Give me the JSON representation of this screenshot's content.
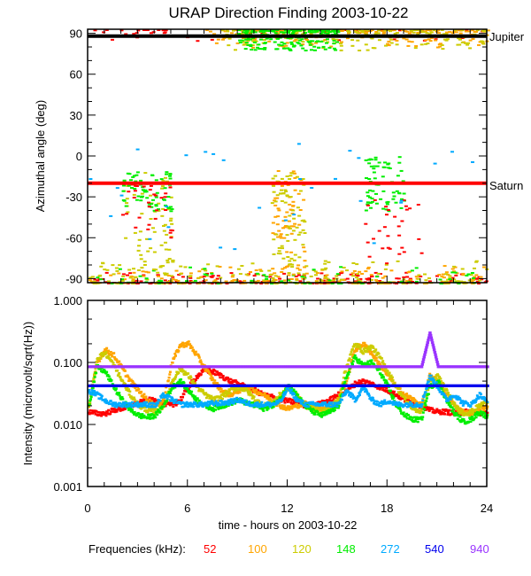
{
  "chart_data": [
    {
      "type": "scatter",
      "title": "URAP Direction Finding  2003-10-22",
      "xlabel": "",
      "ylabel": "Azimuthal angle (deg)",
      "xlim": [
        0,
        24
      ],
      "ylim": [
        -93,
        93
      ],
      "yticks": [
        90,
        60,
        30,
        0,
        -30,
        -60,
        -90
      ],
      "ytick_labels": [
        "90",
        "60",
        "30",
        "0",
        "-30",
        "-60",
        "-90"
      ],
      "grid": false,
      "reference_lines": [
        {
          "label": "Jupiter",
          "y": 88,
          "color": "#000000"
        },
        {
          "label": "Saturn",
          "y": -20,
          "color": "#ff0000"
        }
      ],
      "clusters": [
        {
          "series": "52",
          "x_range": [
            0,
            24
          ],
          "y_range": [
            -93,
            -85
          ],
          "density": "high"
        },
        {
          "series": "100",
          "x_range": [
            0,
            24
          ],
          "y_range": [
            -93,
            -80
          ],
          "density": "high"
        },
        {
          "series": "120",
          "x_range": [
            0,
            24
          ],
          "y_range": [
            -93,
            -75
          ],
          "density": "high"
        },
        {
          "series": "148",
          "x_range": [
            0,
            24
          ],
          "y_range": [
            -93,
            -80
          ],
          "density": "medium"
        },
        {
          "series": "52",
          "x_range": [
            0,
            24
          ],
          "y_range": [
            85,
            93
          ],
          "density": "medium"
        },
        {
          "series": "100",
          "x_range": [
            7,
            24
          ],
          "y_range": [
            80,
            93
          ],
          "density": "high"
        },
        {
          "series": "120",
          "x_range": [
            8,
            24
          ],
          "y_range": [
            78,
            93
          ],
          "density": "high"
        },
        {
          "series": "148",
          "x_range": [
            9,
            15
          ],
          "y_range": [
            78,
            93
          ],
          "density": "high"
        },
        {
          "series": "120",
          "x_range": [
            2,
            5
          ],
          "y_range": [
            -90,
            -10
          ],
          "density": "medium"
        },
        {
          "series": "148",
          "x_range": [
            2,
            5
          ],
          "y_range": [
            -40,
            -10
          ],
          "density": "medium"
        },
        {
          "series": "52",
          "x_range": [
            2,
            5
          ],
          "y_range": [
            -60,
            -20
          ],
          "density": "low"
        },
        {
          "series": "100",
          "x_range": [
            11,
            13
          ],
          "y_range": [
            -90,
            -10
          ],
          "density": "medium"
        },
        {
          "series": "120",
          "x_range": [
            11,
            13
          ],
          "y_range": [
            -80,
            -10
          ],
          "density": "medium"
        },
        {
          "series": "148",
          "x_range": [
            16.5,
            19
          ],
          "y_range": [
            -40,
            0
          ],
          "density": "medium"
        },
        {
          "series": "52",
          "x_range": [
            16.5,
            20
          ],
          "y_range": [
            -80,
            -30
          ],
          "density": "low"
        },
        {
          "series": "272",
          "x_range": [
            0,
            24
          ],
          "y_range": [
            -70,
            10
          ],
          "density": "low"
        }
      ]
    },
    {
      "type": "line",
      "title": "",
      "xlabel": "time - hours on 2003-10-22",
      "ylabel": "Intensity (microvolt/sqrt(Hz))",
      "xlim": [
        0,
        24
      ],
      "ylim": [
        0.001,
        1.0
      ],
      "yscale": "log",
      "xticks": [
        0,
        6,
        12,
        18,
        24
      ],
      "xtick_labels": [
        "0",
        "6",
        "12",
        "18",
        "24"
      ],
      "yticks": [
        1.0,
        0.1,
        0.01,
        0.001
      ],
      "ytick_labels": [
        "1.000",
        "0.100",
        "0.010",
        "0.001"
      ],
      "grid": false,
      "x": [
        0,
        0.5,
        1,
        1.5,
        2,
        2.5,
        3,
        3.5,
        4,
        4.5,
        5,
        5.5,
        6,
        6.5,
        7,
        7.5,
        8,
        8.5,
        9,
        9.5,
        10,
        10.5,
        11,
        11.5,
        12,
        12.5,
        13,
        13.5,
        14,
        14.5,
        15,
        15.5,
        16,
        16.5,
        17,
        17.5,
        18,
        18.5,
        19,
        19.5,
        20,
        20.5,
        21,
        21.5,
        22,
        22.5,
        23,
        23.5,
        24
      ],
      "series": [
        {
          "name": "52",
          "color": "#ff0000",
          "values": [
            0.016,
            0.015,
            0.015,
            0.017,
            0.018,
            0.02,
            0.022,
            0.025,
            0.024,
            0.022,
            0.02,
            0.025,
            0.04,
            0.06,
            0.075,
            0.07,
            0.06,
            0.05,
            0.045,
            0.04,
            0.035,
            0.03,
            0.028,
            0.025,
            0.024,
            0.022,
            0.02,
            0.02,
            0.022,
            0.025,
            0.03,
            0.035,
            0.045,
            0.05,
            0.045,
            0.04,
            0.035,
            0.03,
            0.025,
            0.022,
            0.02,
            0.017,
            0.016,
            0.016,
            0.015,
            0.016,
            0.016,
            0.015,
            0.015
          ]
        },
        {
          "name": "100",
          "color": "#ffa500",
          "values": [
            0.02,
            0.1,
            0.16,
            0.13,
            0.08,
            0.05,
            0.035,
            0.025,
            0.02,
            0.025,
            0.1,
            0.19,
            0.2,
            0.13,
            0.08,
            0.05,
            0.035,
            0.03,
            0.035,
            0.04,
            0.035,
            0.03,
            0.025,
            0.02,
            0.018,
            0.02,
            0.022,
            0.02,
            0.018,
            0.02,
            0.025,
            0.05,
            0.16,
            0.2,
            0.14,
            0.09,
            0.06,
            0.04,
            0.03,
            0.025,
            0.02,
            0.06,
            0.05,
            0.03,
            0.02,
            0.016,
            0.015,
            0.017,
            0.02
          ]
        },
        {
          "name": "120",
          "color": "#cccc00",
          "values": [
            0.018,
            0.12,
            0.14,
            0.09,
            0.05,
            0.03,
            0.02,
            0.017,
            0.016,
            0.02,
            0.05,
            0.08,
            0.06,
            0.04,
            0.03,
            0.025,
            0.028,
            0.035,
            0.04,
            0.035,
            0.025,
            0.02,
            0.022,
            0.03,
            0.04,
            0.03,
            0.02,
            0.018,
            0.016,
            0.018,
            0.025,
            0.09,
            0.2,
            0.15,
            0.18,
            0.12,
            0.07,
            0.04,
            0.025,
            0.018,
            0.016,
            0.05,
            0.06,
            0.035,
            0.02,
            0.015,
            0.016,
            0.02,
            0.025
          ]
        },
        {
          "name": "148",
          "color": "#00ee00",
          "values": [
            0.02,
            0.085,
            0.07,
            0.04,
            0.025,
            0.017,
            0.014,
            0.013,
            0.014,
            0.02,
            0.04,
            0.05,
            0.035,
            0.025,
            0.02,
            0.018,
            0.02,
            0.022,
            0.025,
            0.022,
            0.02,
            0.018,
            0.02,
            0.025,
            0.045,
            0.03,
            0.02,
            0.016,
            0.014,
            0.016,
            0.02,
            0.06,
            0.12,
            0.09,
            0.1,
            0.07,
            0.04,
            0.02,
            0.014,
            0.012,
            0.012,
            0.04,
            0.05,
            0.025,
            0.015,
            0.011,
            0.012,
            0.016,
            0.013
          ]
        },
        {
          "name": "272",
          "color": "#00aaff",
          "values": [
            0.035,
            0.03,
            0.024,
            0.021,
            0.021,
            0.021,
            0.021,
            0.021,
            0.02,
            0.03,
            0.025,
            0.021,
            0.021,
            0.021,
            0.021,
            0.022,
            0.022,
            0.023,
            0.025,
            0.022,
            0.021,
            0.021,
            0.021,
            0.023,
            0.04,
            0.025,
            0.021,
            0.021,
            0.021,
            0.021,
            0.021,
            0.035,
            0.025,
            0.04,
            0.025,
            0.021,
            0.024,
            0.021,
            0.021,
            0.021,
            0.021,
            0.06,
            0.04,
            0.025,
            0.03,
            0.022,
            0.021,
            0.03,
            0.022
          ]
        },
        {
          "name": "540",
          "color": "#0000ee",
          "values": [
            0.042,
            0.042,
            0.042,
            0.042,
            0.042,
            0.042,
            0.042,
            0.042,
            0.042,
            0.042,
            0.042,
            0.042,
            0.042,
            0.042,
            0.042,
            0.042,
            0.042,
            0.042,
            0.042,
            0.042,
            0.042,
            0.042,
            0.042,
            0.042,
            0.042,
            0.042,
            0.042,
            0.042,
            0.042,
            0.042,
            0.042,
            0.042,
            0.042,
            0.042,
            0.042,
            0.042,
            0.042,
            0.042,
            0.042,
            0.042,
            0.042,
            0.042,
            0.042,
            0.042,
            0.042,
            0.042,
            0.042,
            0.042,
            0.042
          ]
        },
        {
          "name": "940",
          "color": "#9933ff",
          "values": [
            0.085,
            0.085,
            0.085,
            0.085,
            0.085,
            0.085,
            0.085,
            0.085,
            0.085,
            0.085,
            0.085,
            0.085,
            0.085,
            0.085,
            0.085,
            0.085,
            0.085,
            0.085,
            0.085,
            0.085,
            0.085,
            0.085,
            0.085,
            0.085,
            0.085,
            0.085,
            0.085,
            0.085,
            0.085,
            0.085,
            0.085,
            0.085,
            0.085,
            0.085,
            0.085,
            0.085,
            0.085,
            0.085,
            0.085,
            0.085,
            0.085,
            0.3,
            0.085,
            0.085,
            0.085,
            0.085,
            0.085,
            0.085,
            0.085
          ]
        }
      ]
    }
  ],
  "legend": {
    "title": "Frequencies (kHz):",
    "placement": "bottom",
    "entries": [
      {
        "label": "52",
        "color": "#ff0000"
      },
      {
        "label": "100",
        "color": "#ffa500"
      },
      {
        "label": "120",
        "color": "#cccc00"
      },
      {
        "label": "148",
        "color": "#00ee00"
      },
      {
        "label": "272",
        "color": "#00aaff"
      },
      {
        "label": "540",
        "color": "#0000ee"
      },
      {
        "label": "940",
        "color": "#9933ff"
      }
    ]
  }
}
